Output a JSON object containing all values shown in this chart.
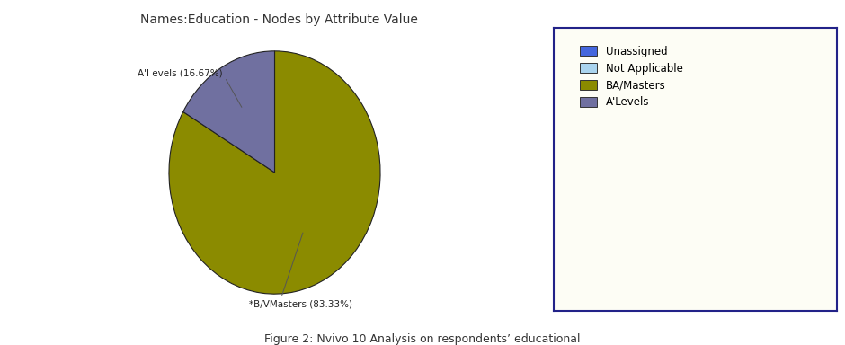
{
  "title": "Names:Education - Nodes by Attribute Value",
  "slices": [
    {
      "label": "BA/Masters",
      "pct": 83.33,
      "color": "#8b8b00",
      "annotation": "*B/VMasters (83.33%)"
    },
    {
      "label": "A'Levels",
      "pct": 16.67,
      "color": "#7070a0",
      "annotation": "A'l evels (16.67%)"
    }
  ],
  "legend_items": [
    {
      "label": "Unassigned",
      "color": "#4466dd"
    },
    {
      "label": "Not Applicable",
      "color": "#aad4ee"
    },
    {
      "label": "BA/Masters",
      "color": "#8b8b00"
    },
    {
      "label": "A'Levels",
      "color": "#7070a0"
    }
  ],
  "caption": "Figure 2: Nvivo 10 Analysis on respondents’ educational",
  "background_color": "#ffffff",
  "legend_bg": "#fdfdf5",
  "title_fontsize": 10,
  "caption_fontsize": 9,
  "legend_fontsize": 8.5
}
